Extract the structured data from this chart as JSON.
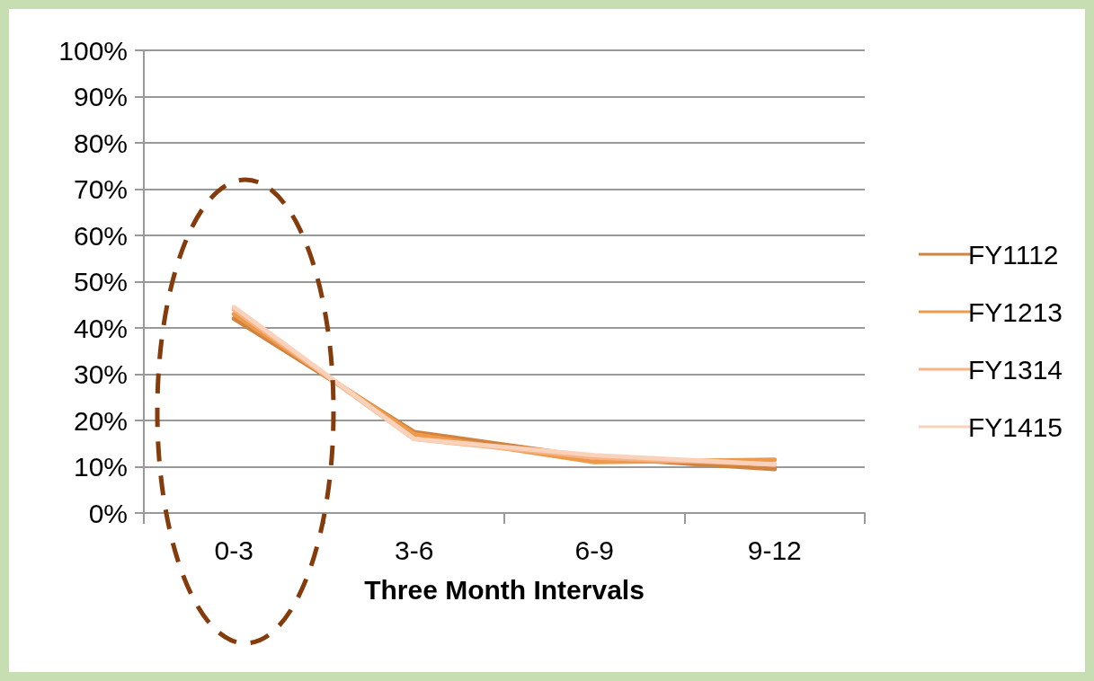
{
  "chart_data": {
    "type": "line",
    "xlabel": "Three Month Intervals",
    "categories": [
      "0-3",
      "3-6",
      "6-9",
      "9-12"
    ],
    "series": [
      {
        "name": "FY1112",
        "color": "#d0843f",
        "values": [
          42,
          17.5,
          12,
          9.5
        ]
      },
      {
        "name": "FY1213",
        "color": "#ee9a4c",
        "values": [
          43,
          17,
          11,
          11.5
        ]
      },
      {
        "name": "FY1314",
        "color": "#f8b385",
        "values": [
          44,
          16,
          12,
          10.5
        ]
      },
      {
        "name": "FY1415",
        "color": "#fad2bc",
        "values": [
          44.5,
          16,
          12.5,
          10.5
        ]
      }
    ],
    "ylim": [
      0,
      100
    ],
    "yticks": [
      {
        "value": 0,
        "label": "0%"
      },
      {
        "value": 10,
        "label": "10%"
      },
      {
        "value": 20,
        "label": "20%"
      },
      {
        "value": 30,
        "label": "30%"
      },
      {
        "value": 40,
        "label": "40%"
      },
      {
        "value": 50,
        "label": "50%"
      },
      {
        "value": 60,
        "label": "60%"
      },
      {
        "value": 70,
        "label": "70%"
      },
      {
        "value": 80,
        "label": "80%"
      },
      {
        "value": 90,
        "label": "90%"
      },
      {
        "value": 100,
        "label": "100%"
      }
    ],
    "grid": "y",
    "legend": "right",
    "marker": "none",
    "line_style": "solid"
  }
}
